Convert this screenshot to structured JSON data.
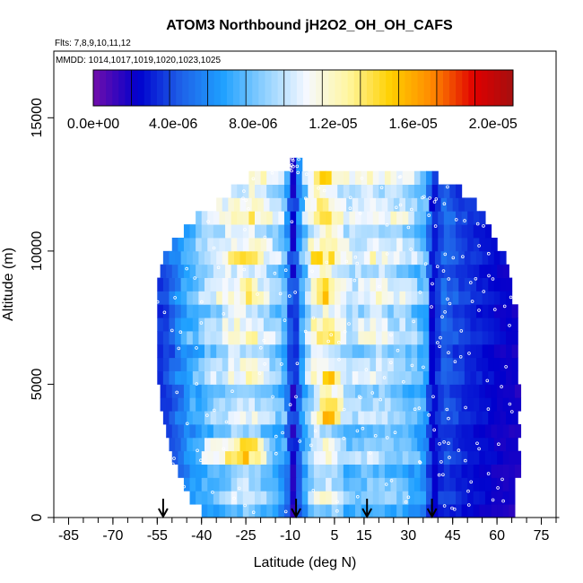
{
  "chart_data": {
    "type": "heatmap",
    "title": "ATOM3 Northbound jH2O2_OH_OH_CAFS",
    "flights_note": "Flts: 7,8,9,10,11,12",
    "dates_note": "MMDD: 1014,1017,1019,1020,1023,1025",
    "xlabel": "Latitude (deg N)",
    "ylabel": "Altitude (m)",
    "xlim": [
      -90,
      80
    ],
    "ylim": [
      0,
      17500
    ],
    "x_ticks": [
      -85,
      -70,
      -55,
      -40,
      -25,
      -10,
      5,
      15,
      30,
      45,
      60,
      75
    ],
    "x_tick_labels": [
      "-85",
      "-70",
      "-55",
      "-40",
      "-25",
      "-10",
      "5",
      "15",
      "30",
      "45",
      "60",
      "75"
    ],
    "y_ticks": [
      0,
      5000,
      10000,
      15000
    ],
    "y_tick_labels": [
      "0",
      "5000",
      "10000",
      "15000"
    ],
    "colorbar": {
      "min": 0.0,
      "max": 2.1e-05,
      "tick_values": [
        0.0,
        4e-06,
        8e-06,
        1.2e-05,
        1.6e-05,
        2e-05
      ],
      "tick_labels": [
        "0.0e+00",
        "4.0e-06",
        "8.0e-06",
        "1.2e-05",
        "1.6e-05",
        "2.0e-05"
      ],
      "colors": [
        "#6a0dad",
        "#0000cd",
        "#1e60e8",
        "#1ea0ff",
        "#8fd0ff",
        "#f5f8ff",
        "#fff6a0",
        "#ffd000",
        "#ff8800",
        "#e00000",
        "#a01010"
      ]
    },
    "arrow_latitudes": [
      -53,
      -8,
      16,
      38
    ],
    "altitude_bands": [
      {
        "alt": 250,
        "lat_min": -40,
        "lat_max": 65
      },
      {
        "alt": 750,
        "lat_min": -44,
        "lat_max": 66
      },
      {
        "alt": 1250,
        "lat_min": -46,
        "lat_max": 66
      },
      {
        "alt": 1750,
        "lat_min": -48,
        "lat_max": 67
      },
      {
        "alt": 2250,
        "lat_min": -50,
        "lat_max": 67
      },
      {
        "alt": 2750,
        "lat_min": -51,
        "lat_max": 67
      },
      {
        "alt": 3250,
        "lat_min": -52,
        "lat_max": 67
      },
      {
        "alt": 3750,
        "lat_min": -53,
        "lat_max": 67
      },
      {
        "alt": 4250,
        "lat_min": -54,
        "lat_max": 67
      },
      {
        "alt": 4750,
        "lat_min": -54,
        "lat_max": 67
      },
      {
        "alt": 5250,
        "lat_min": -55,
        "lat_max": 67
      },
      {
        "alt": 5750,
        "lat_min": -55,
        "lat_max": 67
      },
      {
        "alt": 6250,
        "lat_min": -55,
        "lat_max": 67
      },
      {
        "alt": 6750,
        "lat_min": -55,
        "lat_max": 66
      },
      {
        "alt": 7250,
        "lat_min": -55,
        "lat_max": 66
      },
      {
        "alt": 7750,
        "lat_min": -55,
        "lat_max": 66
      },
      {
        "alt": 8250,
        "lat_min": -55,
        "lat_max": 65
      },
      {
        "alt": 8750,
        "lat_min": -55,
        "lat_max": 65
      },
      {
        "alt": 9250,
        "lat_min": -54,
        "lat_max": 64
      },
      {
        "alt": 9750,
        "lat_min": -53,
        "lat_max": 63
      },
      {
        "alt": 10250,
        "lat_min": -50,
        "lat_max": 60
      },
      {
        "alt": 10750,
        "lat_min": -46,
        "lat_max": 58
      },
      {
        "alt": 11250,
        "lat_min": -42,
        "lat_max": 55
      },
      {
        "alt": 11750,
        "lat_min": -35,
        "lat_max": 52
      },
      {
        "alt": 12250,
        "lat_min": -30,
        "lat_max": 48
      },
      {
        "alt": 12750,
        "lat_min": -24,
        "lat_max": 40
      },
      {
        "alt": 13250,
        "lat_min": -10,
        "lat_max": -7
      }
    ],
    "value_profile": {
      "lat_nodes": [
        -56,
        -50,
        -44,
        -38,
        -30,
        -24,
        -18,
        -12,
        -9,
        -6,
        -2,
        2,
        6,
        10,
        14,
        18,
        24,
        30,
        36,
        38,
        42,
        50,
        60,
        68
      ],
      "base_values": [
        3e-06,
        5e-06,
        8e-06,
        1e-05,
        1.2e-05,
        1.3e-05,
        1.1e-05,
        9e-06,
        2e-06,
        8e-06,
        1.3e-05,
        1.4e-05,
        1.25e-05,
        1.05e-05,
        1.1e-05,
        1.15e-05,
        1.1e-05,
        1e-05,
        8e-06,
        2.5e-06,
        5e-06,
        3.5e-06,
        2.5e-06,
        2e-06
      ]
    }
  }
}
